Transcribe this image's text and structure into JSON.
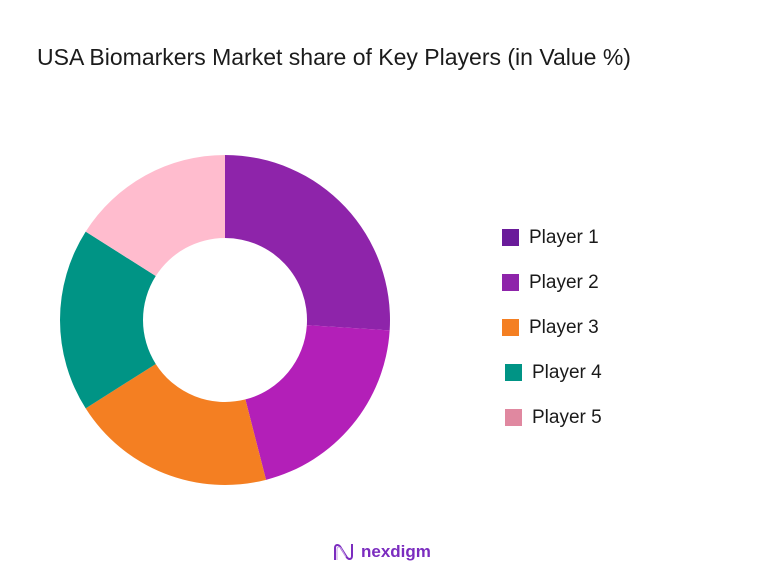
{
  "title": "USA Biomarkers Market share of Key Players (in Value %)",
  "chart_data": {
    "type": "pie",
    "variant": "donut",
    "title": "USA Biomarkers Market share of Key Players (in Value %)",
    "categories": [
      "Player 1",
      "Player 2",
      "Player 3",
      "Player 4",
      "Player 5"
    ],
    "values": [
      26,
      20,
      20,
      18,
      16
    ],
    "unit": "%",
    "colors": [
      "#8e24aa",
      "#b31fb8",
      "#f47f22",
      "#009485",
      "#ffbcce"
    ],
    "legend_position": "right",
    "start_angle_deg": 0,
    "direction": "clockwise"
  },
  "legend": {
    "items": [
      {
        "label": "Player 1",
        "color": "#6a1b9a"
      },
      {
        "label": "Player 2",
        "color": "#8e24aa"
      },
      {
        "label": "Player 3",
        "color": "#f47f22"
      },
      {
        "label": "Player 4",
        "color": "#009485"
      },
      {
        "label": "Player 5",
        "color": "#e088a0"
      }
    ]
  },
  "brand": {
    "name": "nexdigm",
    "icon": "wave-logo-icon",
    "color": "#7b2cbf"
  }
}
